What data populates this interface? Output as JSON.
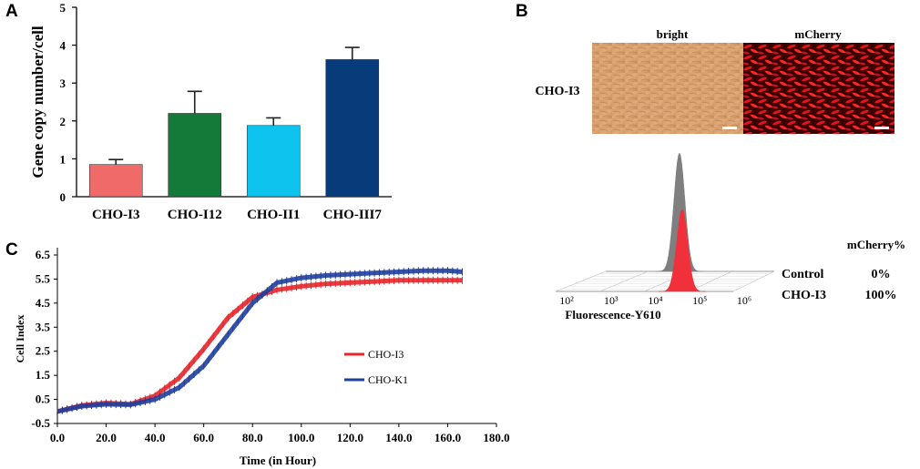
{
  "panels": {
    "a": "A",
    "b": "B",
    "c": "C"
  },
  "chart_data": [
    {
      "type": "bar",
      "panel": "A",
      "categories": [
        "CHO-I3",
        "CHO-I12",
        "CHO-II1",
        "CHO-III7"
      ],
      "values": [
        0.85,
        2.2,
        1.88,
        3.62
      ],
      "errors": [
        0.13,
        0.58,
        0.2,
        0.32
      ],
      "colors": [
        "#f06a6a",
        "#137a39",
        "#0ec4ef",
        "#073b7a"
      ],
      "ylabel": "Gene copy number/cell",
      "ylim": [
        0,
        5
      ],
      "yticks": [
        0,
        1,
        2,
        3,
        4,
        5
      ]
    },
    {
      "type": "line",
      "panel": "C",
      "title": "",
      "xlabel": "Time (in Hour)",
      "ylabel": "Cell Index",
      "xlim": [
        0,
        180
      ],
      "ylim": [
        -0.5,
        6.5
      ],
      "xticks": [
        "0.0",
        "20.0",
        "40.0",
        "60.0",
        "80.0",
        "100.0",
        "120.0",
        "140.0",
        "160.0",
        "180.0"
      ],
      "yticks": [
        "-0.5",
        "0.5",
        "1.5",
        "2.5",
        "3.5",
        "4.5",
        "5.5",
        "6.5"
      ],
      "legend": "right-middle",
      "series": [
        {
          "name": "CHO-I3",
          "color": "#e5262a",
          "x": [
            0,
            10,
            20,
            30,
            40,
            50,
            60,
            70,
            80,
            90,
            100,
            110,
            120,
            130,
            140,
            150,
            160,
            166
          ],
          "y": [
            0.0,
            0.25,
            0.35,
            0.3,
            0.65,
            1.4,
            2.6,
            3.9,
            4.75,
            5.05,
            5.2,
            5.3,
            5.35,
            5.4,
            5.45,
            5.45,
            5.45,
            5.45
          ]
        },
        {
          "name": "CHO-K1",
          "color": "#1f3f9c",
          "x": [
            0,
            10,
            20,
            30,
            40,
            50,
            60,
            70,
            80,
            90,
            100,
            110,
            120,
            130,
            140,
            150,
            160,
            166
          ],
          "y": [
            0.0,
            0.22,
            0.3,
            0.28,
            0.5,
            1.0,
            1.9,
            3.2,
            4.5,
            5.35,
            5.55,
            5.65,
            5.7,
            5.75,
            5.8,
            5.85,
            5.85,
            5.8
          ]
        }
      ]
    },
    {
      "type": "histogram",
      "panel": "B",
      "xlabel": "Fluorescence-Y610",
      "xticks": [
        "10²",
        "10³",
        "10⁴",
        "10⁵",
        "10⁶"
      ],
      "header": "mCherry%",
      "series": [
        {
          "name": "Control",
          "percent": "0%",
          "color": "#7f7f7f",
          "peak_log10": 3.75
        },
        {
          "name": "CHO-I3",
          "percent": "100%",
          "color": "#f0303a",
          "peak_log10": 4.85
        }
      ]
    }
  ],
  "micrograph": {
    "row_label": "CHO-I3",
    "col1": "bright",
    "col2": "mCherry"
  }
}
